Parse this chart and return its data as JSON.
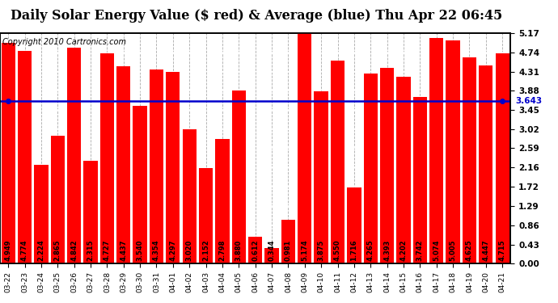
{
  "title": "Daily Solar Energy Value ($ red) & Average (blue) Thu Apr 22 06:45",
  "copyright": "Copyright 2010 Cartronics.com",
  "categories": [
    "03-22",
    "03-23",
    "03-24",
    "03-25",
    "03-26",
    "03-27",
    "03-28",
    "03-29",
    "03-30",
    "03-31",
    "04-01",
    "04-02",
    "04-03",
    "04-04",
    "04-05",
    "04-06",
    "04-07",
    "04-08",
    "04-09",
    "04-10",
    "04-11",
    "04-12",
    "04-13",
    "04-14",
    "04-15",
    "04-16",
    "04-17",
    "04-18",
    "04-19",
    "04-20",
    "04-21"
  ],
  "values": [
    4.949,
    4.774,
    2.224,
    2.865,
    4.842,
    2.315,
    4.727,
    4.437,
    3.54,
    4.354,
    4.297,
    3.02,
    2.152,
    2.798,
    3.88,
    0.612,
    0.344,
    0.981,
    5.174,
    3.875,
    4.55,
    1.716,
    4.265,
    4.393,
    4.202,
    3.742,
    5.074,
    5.005,
    4.625,
    4.447,
    4.715
  ],
  "average": 3.643,
  "bar_color": "#FF0000",
  "avg_line_color": "#0000CC",
  "background_color": "#FFFFFF",
  "plot_bg_color": "#FFFFFF",
  "ylim": [
    0,
    5.17
  ],
  "yticks": [
    0.0,
    0.43,
    0.86,
    1.29,
    1.72,
    2.16,
    2.59,
    3.02,
    3.45,
    3.88,
    4.31,
    4.74,
    5.17
  ],
  "title_fontsize": 11.5,
  "copyright_fontsize": 7,
  "bar_label_fontsize": 6,
  "tick_fontsize": 7.5,
  "avg_label": "3.643"
}
